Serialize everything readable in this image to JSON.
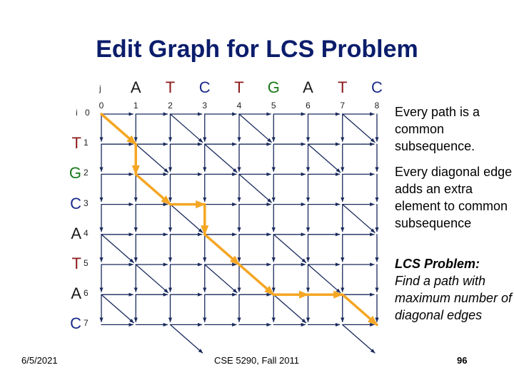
{
  "title": "Edit Graph for LCS Problem",
  "j_label": "j",
  "i_label": "i",
  "columns": {
    "letters": [
      "A",
      "T",
      "C",
      "T",
      "G",
      "A",
      "T",
      "C"
    ],
    "numbers": [
      "0",
      "1",
      "2",
      "3",
      "4",
      "5",
      "6",
      "7",
      "8"
    ]
  },
  "rows": {
    "letters": [
      "",
      "T",
      "G",
      "C",
      "A",
      "T",
      "A",
      "C"
    ],
    "numbers": [
      "0",
      "1",
      "2",
      "3",
      "4",
      "5",
      "6",
      "7"
    ]
  },
  "colors": {
    "sequence_letters": [
      "#1a1a1a",
      "#8b1a1a",
      "#1a7a1a",
      "#1a2a8a"
    ],
    "title": "#0b1d6b",
    "grid": "#1a2a5c",
    "path": "#f5a623"
  },
  "diagonals": [
    [
      0,
      0
    ],
    [
      0,
      2
    ],
    [
      0,
      4
    ],
    [
      0,
      7
    ],
    [
      1,
      1
    ],
    [
      1,
      3
    ],
    [
      1,
      6
    ],
    [
      2,
      4
    ],
    [
      3,
      2
    ],
    [
      3,
      7
    ],
    [
      4,
      0
    ],
    [
      4,
      5
    ],
    [
      5,
      1
    ],
    [
      5,
      3
    ],
    [
      5,
      6
    ],
    [
      6,
      0
    ],
    [
      6,
      5
    ],
    [
      7,
      2
    ],
    [
      7,
      7
    ]
  ],
  "path": [
    [
      0,
      0
    ],
    [
      1,
      1
    ],
    [
      2,
      1
    ],
    [
      3,
      2
    ],
    [
      3,
      3
    ],
    [
      4,
      3
    ],
    [
      5,
      4
    ],
    [
      6,
      5
    ],
    [
      6,
      6
    ],
    [
      6,
      7
    ],
    [
      7,
      8
    ]
  ],
  "side_text": {
    "p1": "Every path is a common subsequence.",
    "p2": "Every diagonal edge adds an extra element to common subsequence",
    "p3_title": "LCS Problem:",
    "p3_body": "Find a path with maximum number of diagonal edges"
  },
  "footer": {
    "date": "6/5/2021",
    "course": "CSE 5290, Fall 2011",
    "page": "96"
  }
}
